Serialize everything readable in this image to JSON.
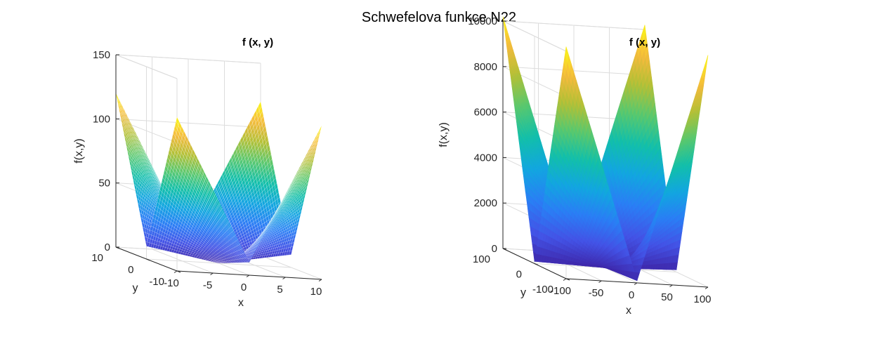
{
  "figure": {
    "title": "Schwefelova funkce N22"
  },
  "colormap": [
    "#3e26a8",
    "#4353e6",
    "#2a7ef5",
    "#12a6e0",
    "#12bfaa",
    "#59c86e",
    "#b3c036",
    "#f6ba3c",
    "#f9fb15"
  ],
  "chart_data": [
    {
      "type": "surface",
      "function": "f(x,y) = |x| + |y| + |x|*|y|",
      "title": "f (x, y)",
      "xlabel": "x",
      "ylabel": "y",
      "zlabel": "f(x,y)",
      "xlim": [
        -10,
        10
      ],
      "ylim": [
        -10,
        10
      ],
      "zlim": [
        0,
        150
      ],
      "xticks": [
        "-10",
        "-5",
        "0",
        "5",
        "10"
      ],
      "yticks": [
        "-10",
        "0",
        "10"
      ],
      "zticks": [
        "0",
        "50",
        "100",
        "150"
      ],
      "max_value": 120,
      "grid": true
    },
    {
      "type": "surface",
      "function": "f(x,y) = |x| + |y| + |x|*|y|",
      "title": "f (x, y)",
      "xlabel": "x",
      "ylabel": "y",
      "zlabel": "f(x,y)",
      "xlim": [
        -100,
        100
      ],
      "ylim": [
        -100,
        100
      ],
      "zlim": [
        0,
        10000
      ],
      "xticks": [
        "-100",
        "-50",
        "0",
        "50",
        "100"
      ],
      "yticks": [
        "-100",
        "0",
        "100"
      ],
      "zticks": [
        "0",
        "2000",
        "4000",
        "6000",
        "8000",
        "10000"
      ],
      "max_value": 10200,
      "grid": true
    }
  ]
}
